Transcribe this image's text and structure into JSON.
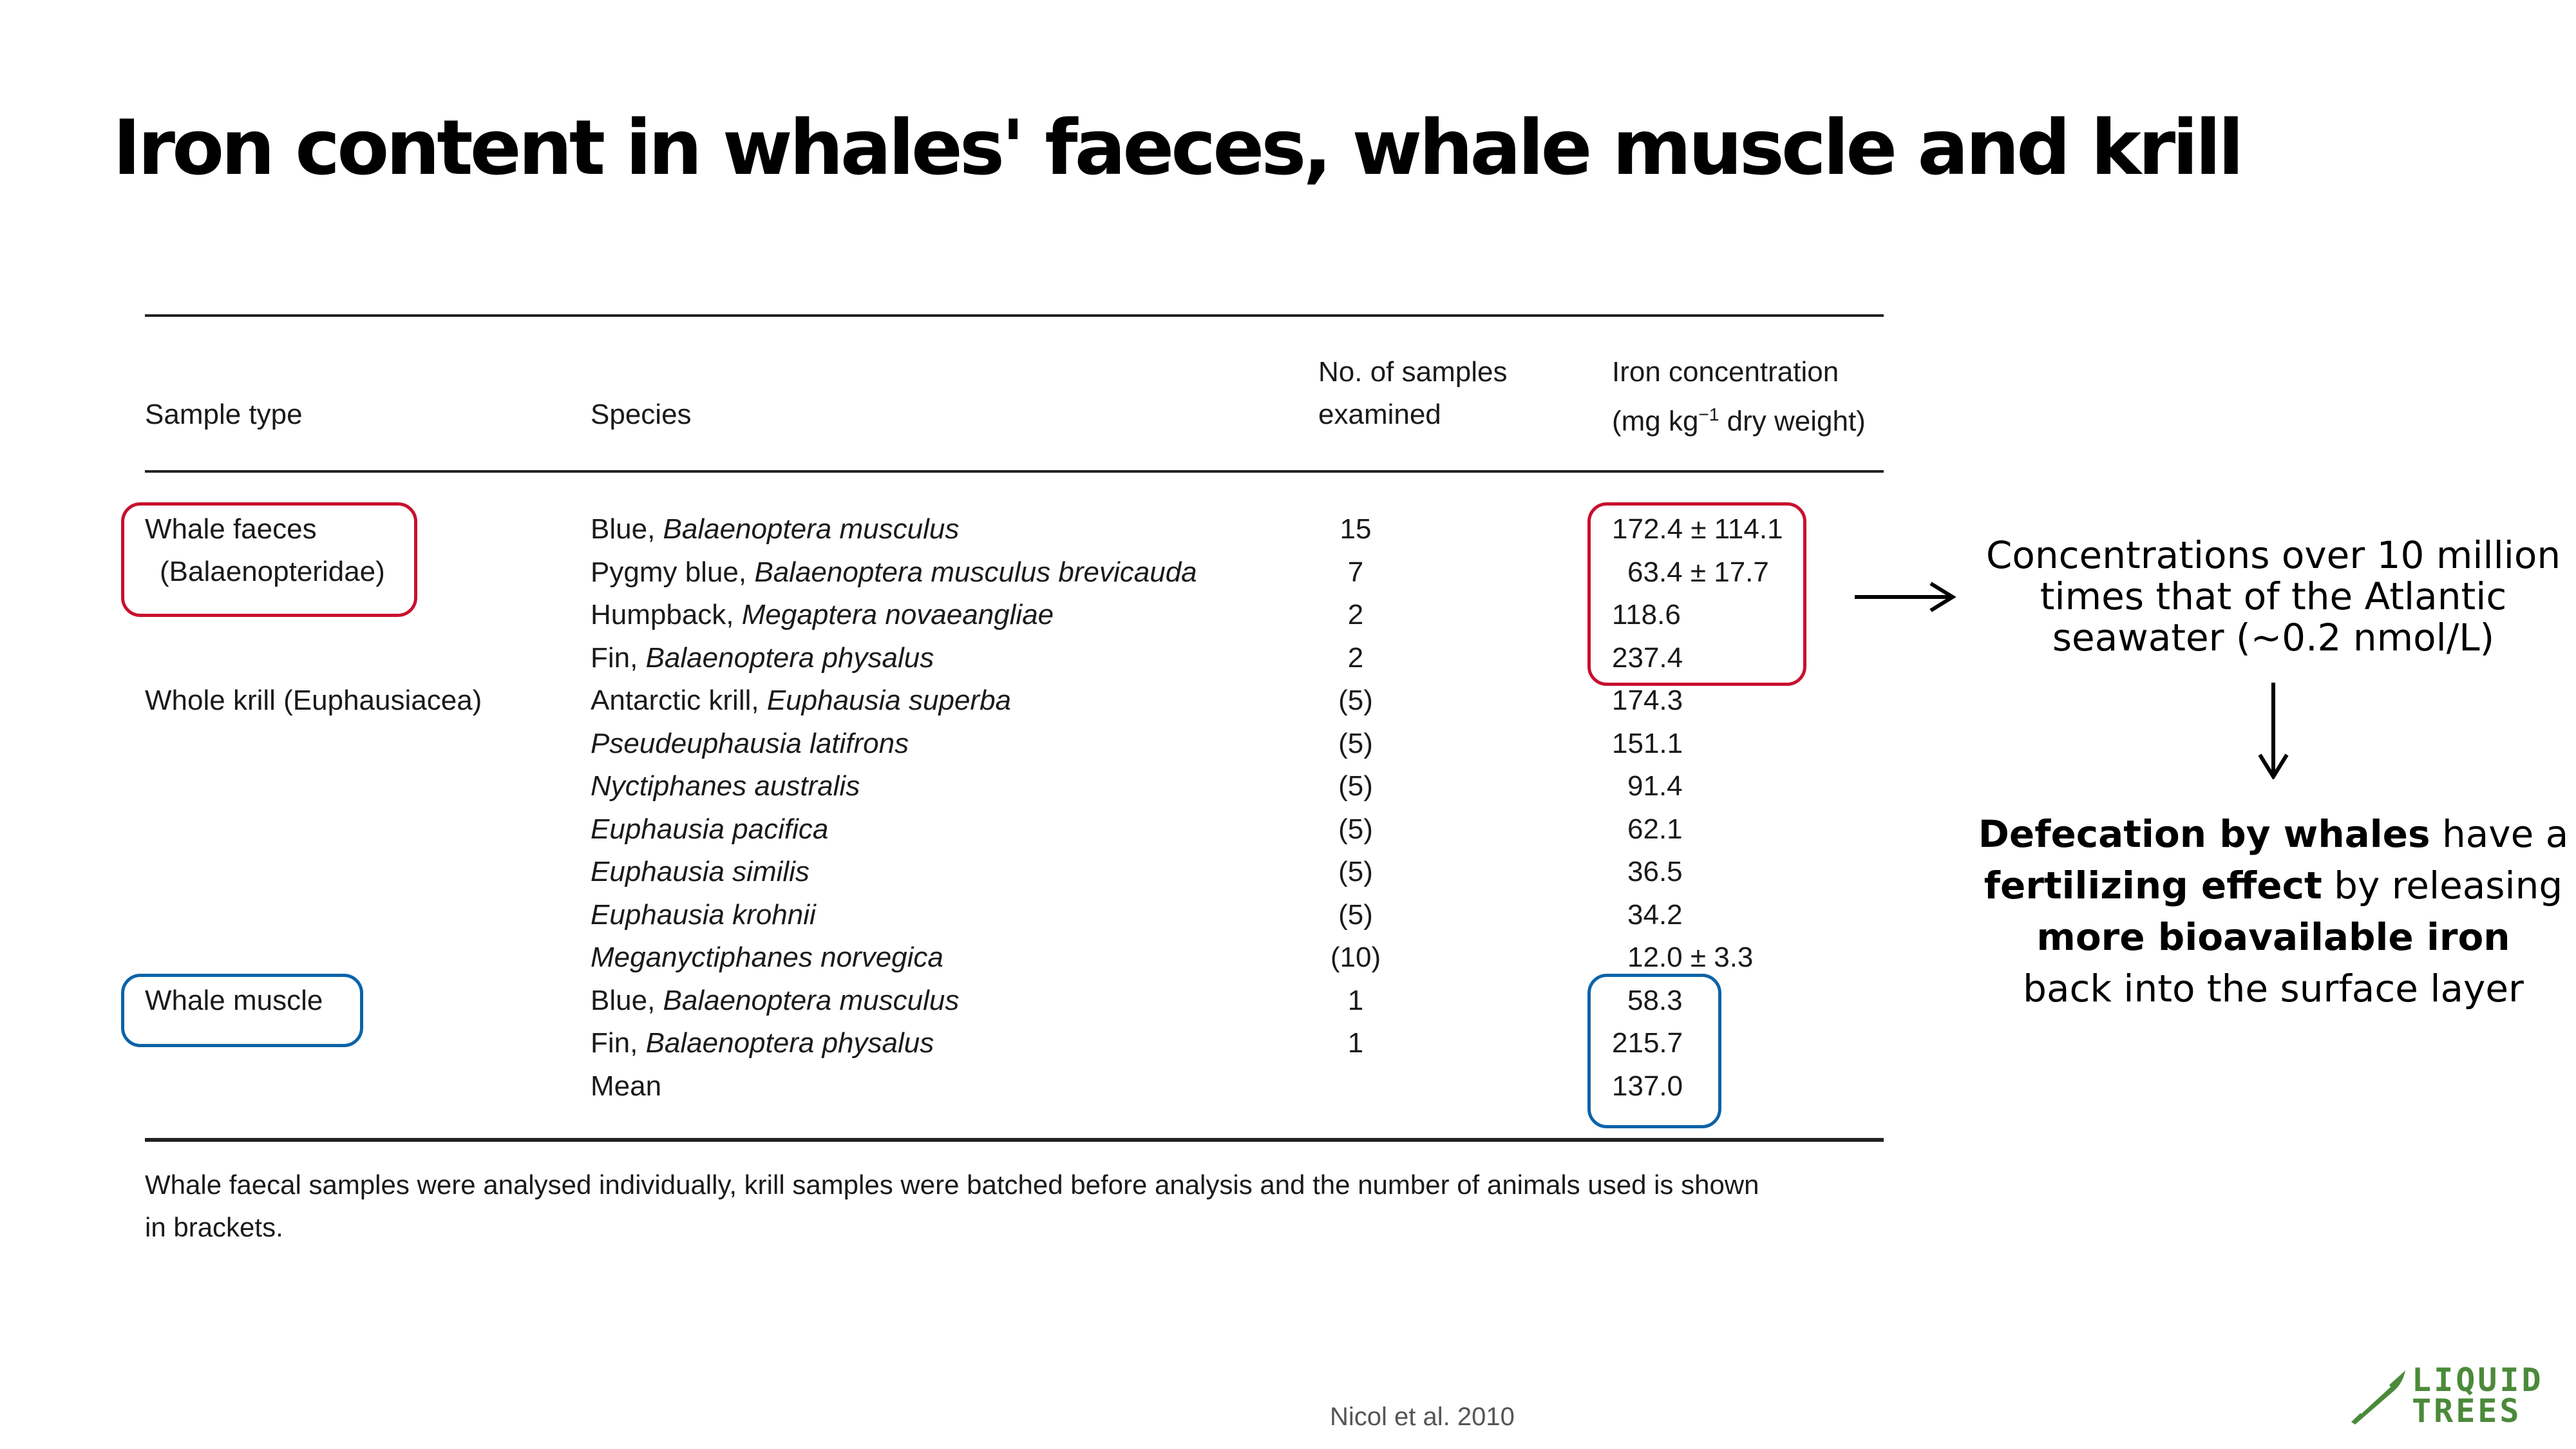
{
  "title": "Iron content in whales' faeces, whale muscle and krill",
  "table": {
    "headers": {
      "sample_type": "Sample type",
      "species": "Species",
      "samples_line1": "No. of samples",
      "samples_line2": "examined",
      "iron_line1": "Iron concentration",
      "iron_line2_pre": "(mg kg",
      "iron_line2_sup": "−1",
      "iron_line2_post": " dry weight)"
    },
    "groups": [
      {
        "line1": "Whale faeces",
        "line2": "(Balaenopteridae)"
      },
      {
        "line1": "Whole krill (Euphausiacea)"
      },
      {
        "line1": "Whale muscle"
      }
    ],
    "rows": [
      {
        "common": "Blue, ",
        "latin": "Balaenoptera musculus",
        "n": "15",
        "fe": "172.4 ± 114.1"
      },
      {
        "common": "Pygmy blue, ",
        "latin": "Balaenoptera musculus brevicauda",
        "n": "7",
        "fe": "63.4 ± 17.7"
      },
      {
        "common": "Humpback, ",
        "latin": "Megaptera novaeangliae",
        "n": "2",
        "fe": "118.6"
      },
      {
        "common": "Fin, ",
        "latin": "Balaenoptera physalus",
        "n": "2",
        "fe": "237.4"
      },
      {
        "common": "Antarctic krill, ",
        "latin": "Euphausia superba",
        "n": "(5)",
        "fe": "174.3"
      },
      {
        "common": "",
        "latin": "Pseudeuphausia latifrons",
        "n": "(5)",
        "fe": "151.1"
      },
      {
        "common": "",
        "latin": "Nyctiphanes australis",
        "n": "(5)",
        "fe": "91.4"
      },
      {
        "common": "",
        "latin": "Euphausia pacifica",
        "n": "(5)",
        "fe": "62.1"
      },
      {
        "common": "",
        "latin": "Euphausia similis",
        "n": "(5)",
        "fe": "36.5"
      },
      {
        "common": "",
        "latin": "Euphausia krohnii",
        "n": "(5)",
        "fe": "34.2"
      },
      {
        "common": "",
        "latin": "Meganyctiphanes norvegica",
        "n": "(10)",
        "fe": "12.0 ± 3.3"
      },
      {
        "common": "Blue, ",
        "latin": "Balaenoptera musculus",
        "n": "1",
        "fe": "58.3"
      },
      {
        "common": "Fin, ",
        "latin": "Balaenoptera physalus",
        "n": "1",
        "fe": "215.7"
      },
      {
        "common": "Mean",
        "latin": "",
        "n": "",
        "fe": "137.0"
      }
    ],
    "footnote_line1": "Whale faecal samples were analysed individually, krill samples were batched before analysis and the number of animals used is shown",
    "footnote_line2": "in brackets."
  },
  "callout": {
    "line1": "Concentrations over 10 million",
    "line2": "times that of the Atlantic",
    "line3": "seawater (~0.2 nmol/L)"
  },
  "conclusion": {
    "l1_bold": "Defecation by whales",
    "l1_rest": " have a",
    "l2_bold": "fertilizing effect",
    "l2_rest": " by releasing",
    "l3_bold": "more bioavailable iron",
    "l4": "back into the surface layer"
  },
  "citation": "Nicol et al. 2010",
  "logo": {
    "line1": "LIQUID",
    "line2": "TREES"
  },
  "colors": {
    "red_box": "#c8102e",
    "blue_box": "#0b63a8",
    "logo_green": "#4b8a3a"
  }
}
